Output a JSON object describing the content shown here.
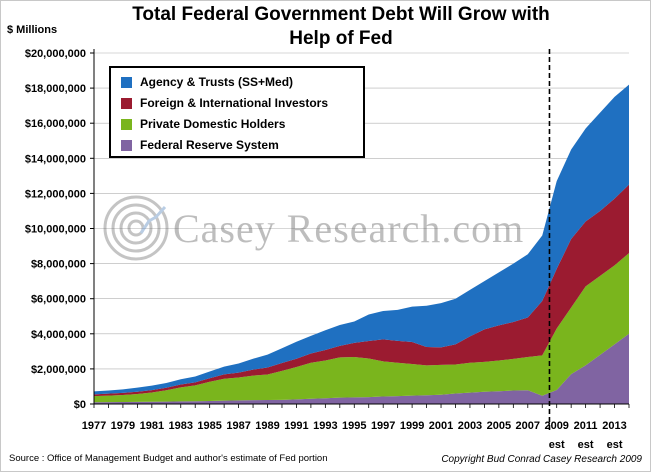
{
  "header": {
    "title_line1": "Total Federal Government Debt Will Grow with",
    "title_line2": "Help of Fed",
    "unit_label": "$ Millions"
  },
  "footer": {
    "source": "Source : Office of Management Budget and author's estimate of  Fed portion",
    "copyright": "Copyright Bud Conrad Casey Research 2009"
  },
  "watermark": {
    "text": "Casey Research.com"
  },
  "chart_data": {
    "type": "area",
    "stacked": true,
    "title": "Total Federal Government Debt Will Grow with Help of Fed",
    "ylabel": "$ Millions",
    "ylim": [
      0,
      20000000
    ],
    "yticks": [
      0,
      2000000,
      4000000,
      6000000,
      8000000,
      10000000,
      12000000,
      14000000,
      16000000,
      18000000,
      20000000
    ],
    "ytick_labels": [
      "$0",
      "$2,000,000",
      "$4,000,000",
      "$6,000,000",
      "$8,000,000",
      "$10,000,000",
      "$12,000,000",
      "$14,000,000",
      "$16,000,000",
      "$18,000,000",
      "$20,000,000"
    ],
    "x": [
      1977,
      1978,
      1979,
      1980,
      1981,
      1982,
      1983,
      1984,
      1985,
      1986,
      1987,
      1988,
      1989,
      1990,
      1991,
      1992,
      1993,
      1994,
      1995,
      1996,
      1997,
      1998,
      1999,
      2000,
      2001,
      2002,
      2003,
      2004,
      2005,
      2006,
      2007,
      2008,
      2009,
      2010,
      2011,
      2012,
      2013,
      2014
    ],
    "xtick_labels": [
      "1977",
      "1979",
      "1981",
      "1983",
      "1985",
      "1987",
      "1989",
      "1991",
      "1993",
      "1995",
      "1997",
      "1999",
      "2001",
      "2003",
      "2005",
      "2007",
      "2009",
      "2011",
      "2013"
    ],
    "estimate_labels": [
      {
        "x": 2009,
        "text": "est"
      },
      {
        "x": 2011,
        "text": "est"
      },
      {
        "x": 2013,
        "text": "est"
      }
    ],
    "estimate_divider_x": 2008.5,
    "series": [
      {
        "name": "Federal Reserve System",
        "color": "#8064A2",
        "values": [
          100000,
          110000,
          115000,
          120000,
          125000,
          135000,
          150000,
          160000,
          170000,
          190000,
          210000,
          220000,
          230000,
          235000,
          260000,
          300000,
          330000,
          360000,
          380000,
          390000,
          430000,
          450000,
          480000,
          500000,
          530000,
          600000,
          650000,
          700000,
          730000,
          770000,
          780000,
          470000,
          800000,
          1700000,
          2200000,
          2800000,
          3400000,
          4000000
        ]
      },
      {
        "name": "Private Domestic Holders",
        "color": "#7AB51D",
        "values": [
          350000,
          370000,
          400000,
          450000,
          530000,
          650000,
          800000,
          900000,
          1100000,
          1250000,
          1300000,
          1400000,
          1450000,
          1650000,
          1850000,
          2050000,
          2150000,
          2300000,
          2300000,
          2200000,
          2000000,
          1900000,
          1800000,
          1700000,
          1700000,
          1650000,
          1700000,
          1700000,
          1750000,
          1800000,
          1900000,
          2300000,
          3500000,
          3800000,
          4500000,
          4500000,
          4500000,
          4600000
        ]
      },
      {
        "name": "Foreign & International Investors",
        "color": "#9B1B30",
        "values": [
          100000,
          110000,
          120000,
          130000,
          135000,
          140000,
          160000,
          175000,
          200000,
          250000,
          280000,
          340000,
          400000,
          450000,
          470000,
          530000,
          600000,
          650000,
          800000,
          1000000,
          1250000,
          1250000,
          1250000,
          1050000,
          1000000,
          1150000,
          1500000,
          1850000,
          2000000,
          2100000,
          2250000,
          3100000,
          3400000,
          3900000,
          3700000,
          3700000,
          3800000,
          3900000
        ]
      },
      {
        "name": "Agency & Trusts (SS+Med)",
        "color": "#1F70C1",
        "values": [
          170000,
          180000,
          200000,
          230000,
          260000,
          270000,
          300000,
          330000,
          380000,
          440000,
          520000,
          620000,
          730000,
          840000,
          970000,
          1000000,
          1120000,
          1190000,
          1220000,
          1510000,
          1620000,
          1760000,
          2020000,
          2350000,
          2520000,
          2600000,
          2650000,
          2750000,
          3020000,
          3330000,
          3600000,
          3730000,
          5000000,
          5100000,
          5300000,
          5600000,
          5800000,
          5700000
        ]
      }
    ]
  }
}
